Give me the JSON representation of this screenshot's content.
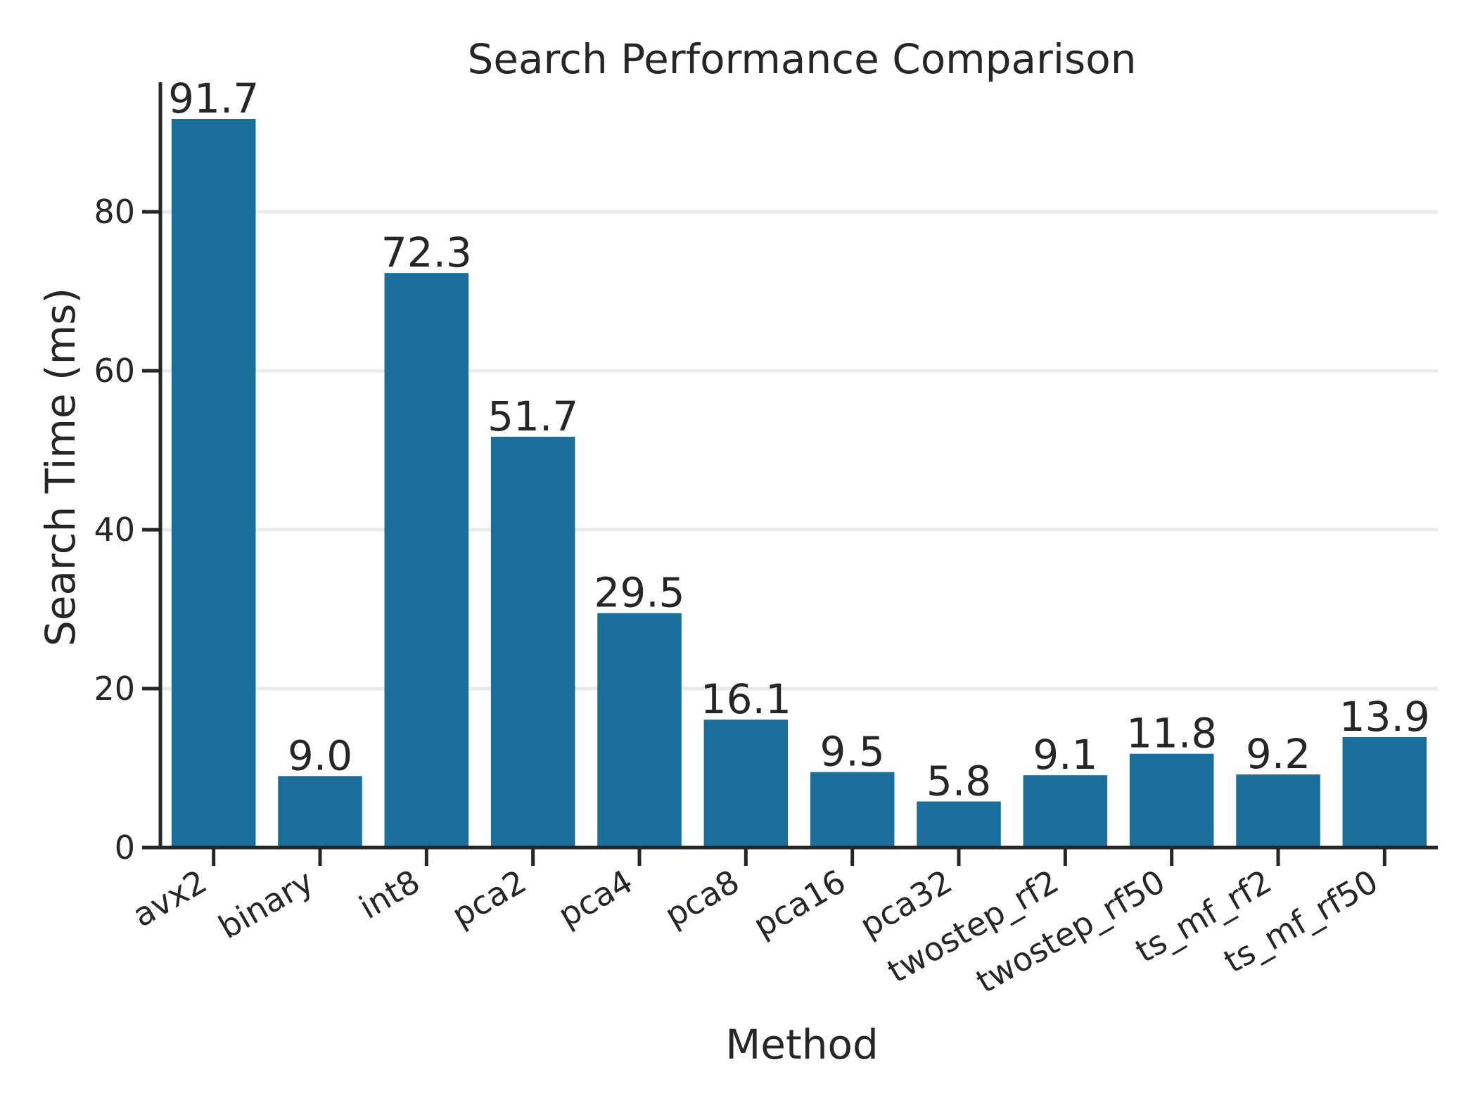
{
  "chart_data": {
    "type": "bar",
    "title": "Search Performance Comparison",
    "xlabel": "Method",
    "ylabel": "Search Time (ms)",
    "categories": [
      "avx2",
      "binary",
      "int8",
      "pca2",
      "pca4",
      "pca8",
      "pca16",
      "pca32",
      "twostep_rf2",
      "twostep_rf50",
      "ts_mf_rf2",
      "ts_mf_rf50"
    ],
    "values": [
      91.7,
      9.0,
      72.3,
      51.7,
      29.5,
      16.1,
      9.5,
      5.8,
      9.1,
      11.8,
      9.2,
      13.9
    ],
    "data_labels": [
      "91.7",
      "9.0",
      "72.3",
      "51.7",
      "29.5",
      "16.1",
      "9.5",
      "5.8",
      "9.1",
      "11.8",
      "9.2",
      "13.9"
    ],
    "ylim": [
      0,
      96.3
    ],
    "yticks": [
      0,
      20,
      40,
      60,
      80
    ],
    "ytick_labels": [
      "0",
      "20",
      "40",
      "60",
      "80"
    ],
    "grid": "horizontal",
    "bar_color": "#1a6e9c",
    "grid_color": "#ebebeb",
    "text_color": "#262626"
  }
}
